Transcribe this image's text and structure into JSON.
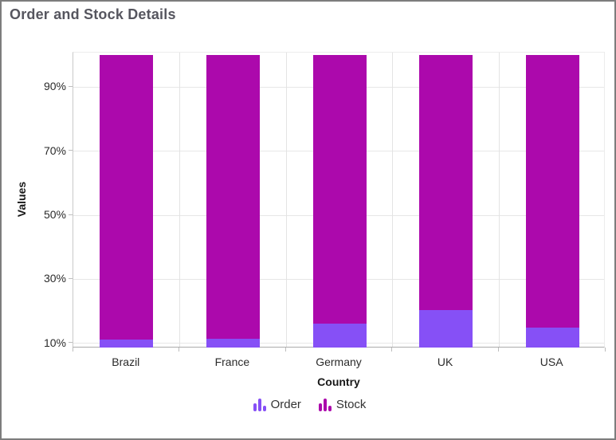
{
  "window": {
    "title": "Order and Stock Details"
  },
  "chart_data": {
    "type": "bar",
    "subtype": "stacked-column-100",
    "title": "Order and Stock Details",
    "categories": [
      "Brazil",
      "France",
      "Germany",
      "UK",
      "USA"
    ],
    "series": [
      {
        "name": "Order",
        "color": "#8650F6",
        "values_pct": [
          11.2,
          11.5,
          16.3,
          20.5,
          15.0
        ]
      },
      {
        "name": "Stock",
        "color": "#AC09AC",
        "values_pct": [
          88.8,
          88.5,
          83.7,
          79.5,
          85.0
        ]
      }
    ],
    "xlabel": "Country",
    "ylabel": "Values",
    "yticks": [
      10,
      30,
      50,
      70,
      90
    ],
    "ytick_labels": [
      "10%",
      "30%",
      "50%",
      "70%",
      "90%"
    ],
    "ylim": [
      8.5,
      100.7
    ],
    "grid": true,
    "legend_position": "bottom",
    "legend": [
      {
        "label": "Order",
        "icon": "mini-column-chart-icon",
        "color": "#8650F6"
      },
      {
        "label": "Stock",
        "icon": "mini-column-chart-icon",
        "color": "#AC09AC"
      }
    ],
    "colors": {
      "title_text": "#56565f",
      "axis_label_text": "#2a2a2a",
      "axis_title_text": "#181818",
      "gridline": "#e7e7e7",
      "axis_line": "#ababab",
      "window_border": "#7d7d7d"
    }
  }
}
